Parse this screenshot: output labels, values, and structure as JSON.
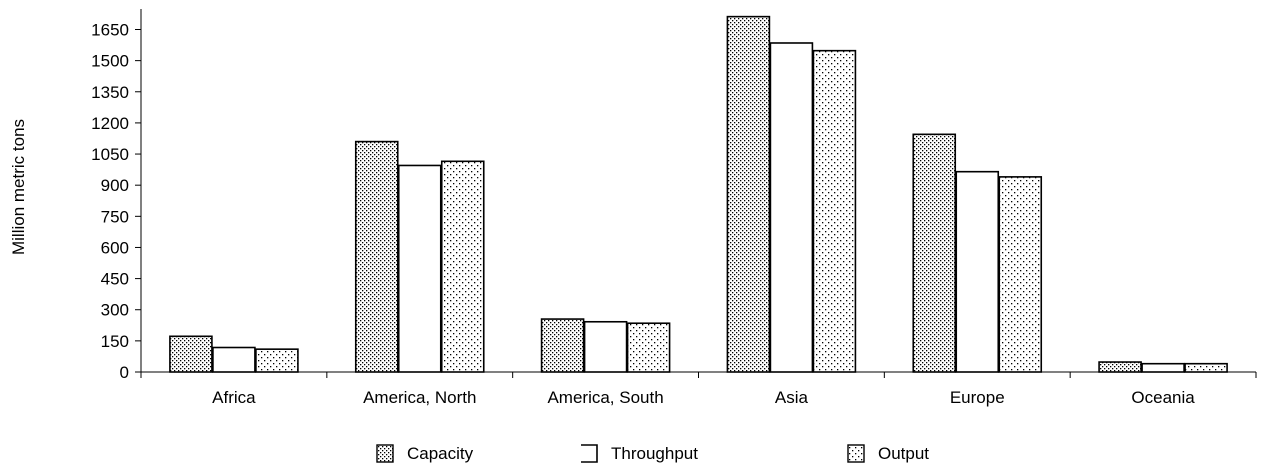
{
  "chart_data": {
    "type": "bar",
    "title": "",
    "xlabel": "",
    "ylabel": "Million metric tons",
    "ylim": [
      0,
      1750
    ],
    "yticks": [
      0,
      150,
      300,
      450,
      600,
      750,
      900,
      1050,
      1200,
      1350,
      1500,
      1650
    ],
    "categories": [
      "Africa",
      "America, North",
      "America, South",
      "Asia",
      "Europe",
      "Oceania"
    ],
    "series": [
      {
        "name": "Capacity",
        "pattern": "dense-dots",
        "values": [
          172,
          1110,
          255,
          1712,
          1145,
          48
        ]
      },
      {
        "name": "Throughput",
        "pattern": "none",
        "values": [
          118,
          995,
          242,
          1585,
          965,
          40
        ]
      },
      {
        "name": "Output",
        "pattern": "sparse-dots",
        "values": [
          110,
          1015,
          235,
          1548,
          940,
          40
        ]
      }
    ],
    "grid": false,
    "legend_position": "bottom",
    "colors": {
      "bar_fill": "#ffffff",
      "bar_stroke": "#000000",
      "dots": "#000000"
    }
  }
}
